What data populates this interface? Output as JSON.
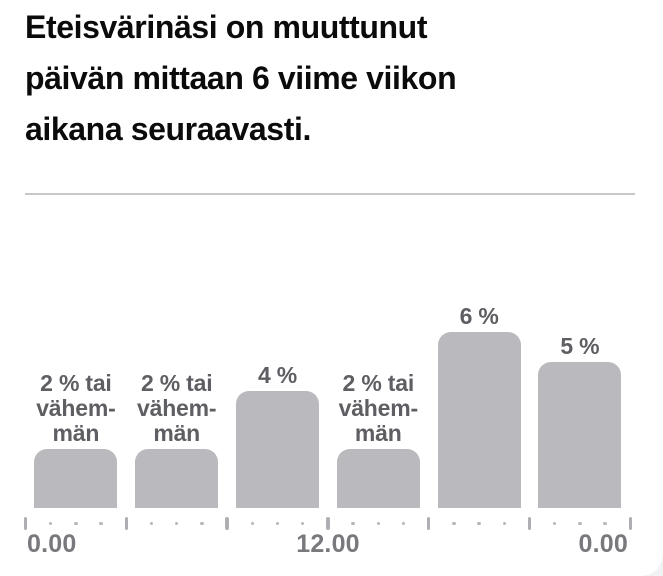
{
  "card": {
    "title_lines": [
      "Eteisvärinäsi on muuttunut",
      "päivän mittaan 6 viime viikon",
      "aikana seuraavasti."
    ]
  },
  "chart_data": {
    "type": "bar",
    "title": "Eteisvärinäsi on muuttunut päivän mittaan 6 viime viikon aikana seuraavasti.",
    "values": [
      2,
      2,
      4,
      2,
      6,
      5
    ],
    "unit": "%",
    "bar_labels": [
      [
        "2 % tai",
        "vähem-",
        "män"
      ],
      [
        "2 % tai",
        "vähem-",
        "män"
      ],
      [
        "4 %"
      ],
      [
        "2 % tai",
        "vähem-",
        "män"
      ],
      [
        "6 %"
      ],
      [
        "5 %"
      ]
    ],
    "x_tick_labels": [
      "0.00",
      "12.00",
      "0.00"
    ],
    "x_axis": {
      "major_ticks": 7,
      "minor_dots_between": 3
    },
    "ylim": [
      0,
      7
    ],
    "grid": false,
    "legend": false
  },
  "colors": {
    "bar_fill": "#b9b9be",
    "bar_label": "#5e5e63",
    "axis_label": "#78787d",
    "tick_major": "#aeaeb3",
    "tick_dot": "#b7b7bc",
    "title": "#0b0b0c",
    "divider": "#c7c7ca",
    "card_bg": "#ffffff",
    "page_bg": "#f2f2f4"
  }
}
